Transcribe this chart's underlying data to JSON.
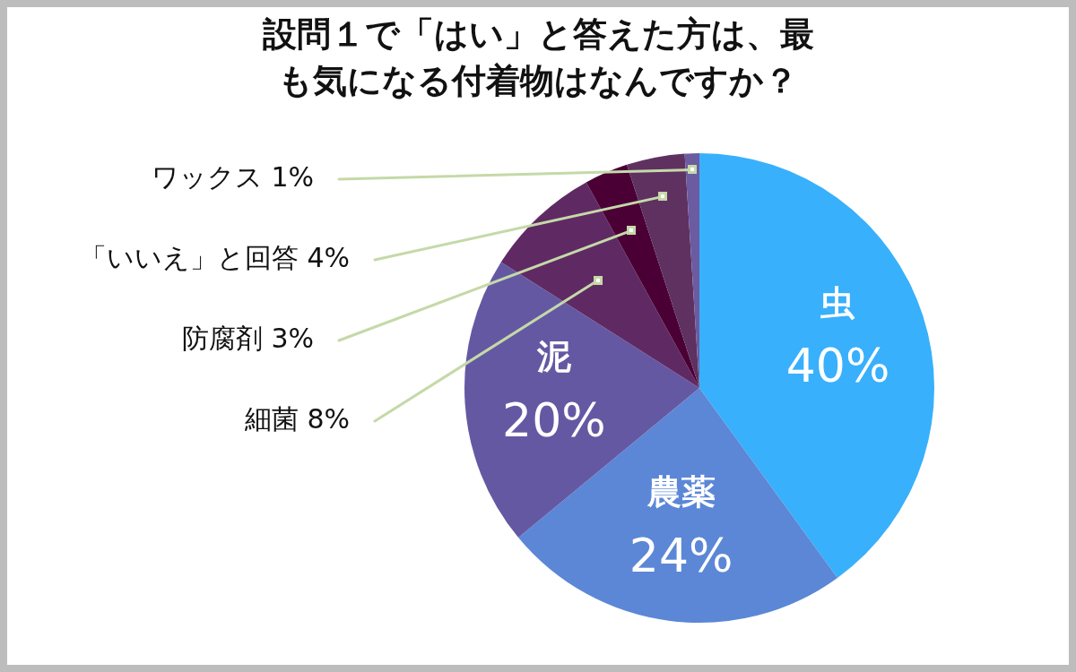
{
  "chart_data": {
    "type": "pie",
    "title": "設問１で「はい」と答えた方は、最も気になる付着物はなんですか？",
    "categories": [
      "虫",
      "農薬",
      "泥",
      "細菌",
      "防腐剤",
      "「いいえ」と回答",
      "ワックス"
    ],
    "values": [
      40,
      24,
      20,
      8,
      3,
      4,
      1
    ],
    "colors": [
      "#38b0fc",
      "#5b87d6",
      "#6558a3",
      "#5f2a63",
      "#4a0035",
      "#5e3160",
      "#6b5ba0"
    ],
    "value_labels": [
      "40%",
      "24%",
      "20%",
      "8%",
      "3%",
      "4%",
      "1%"
    ]
  }
}
